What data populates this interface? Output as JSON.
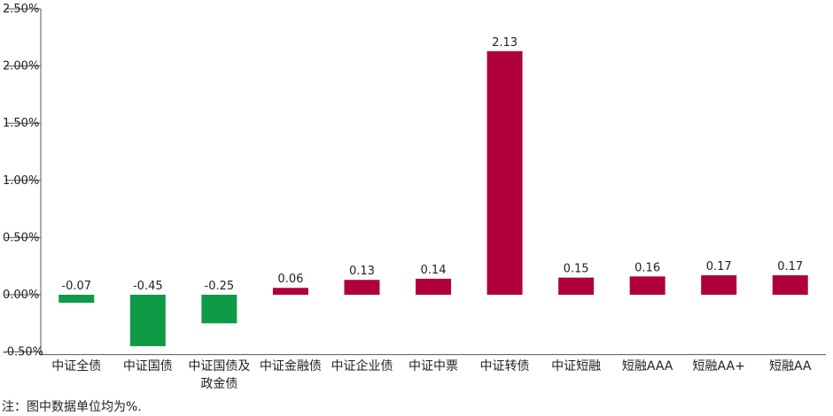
{
  "chart_data": {
    "type": "bar",
    "categories": [
      "中证全债",
      "中证国债",
      "中证国债及\n政金债",
      "中证金融债",
      "中证企业债",
      "中证中票",
      "中证转债",
      "中证短融",
      "短融AAA",
      "短融AA+",
      "短融AA"
    ],
    "values": [
      -0.07,
      -0.45,
      -0.25,
      0.06,
      0.13,
      0.14,
      2.13,
      0.15,
      0.16,
      0.17,
      0.17
    ],
    "data_labels": [
      "-0.07",
      "-0.45",
      "-0.25",
      "0.06",
      "0.13",
      "0.14",
      "2.13",
      "0.15",
      "0.16",
      "0.17",
      "0.17"
    ],
    "ylim": [
      -0.5,
      2.5
    ],
    "yticks": [
      2.5,
      2.0,
      1.5,
      1.0,
      0.5,
      0.0,
      -0.5
    ],
    "ytick_labels": [
      "2.50%",
      "2.00%",
      "1.50%",
      "1.00%",
      "0.50%",
      "0.00%",
      "-0.50%"
    ],
    "colors": {
      "positive": "#b0003a",
      "negative": "#0f9a48",
      "axis": "#555555"
    },
    "xlabel": "",
    "ylabel": "",
    "title": "",
    "grid": false,
    "legend": "none"
  },
  "footnote": "注：图中数据单位均为%."
}
